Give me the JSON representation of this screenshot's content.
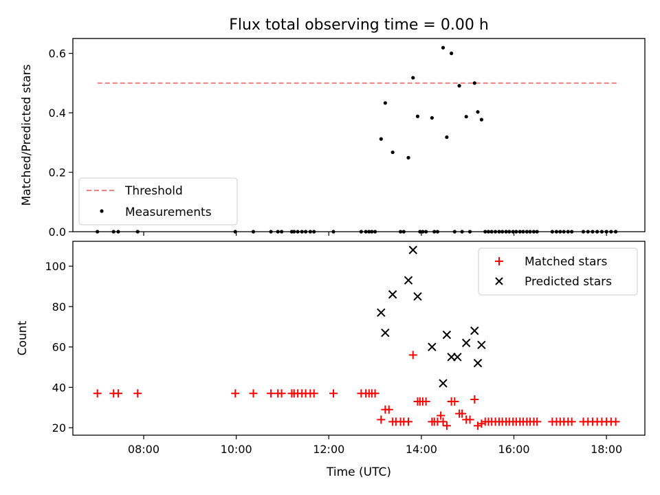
{
  "chart_data": [
    {
      "type": "line",
      "title": "Flux total observing time = 0.00 h",
      "xlabel": "",
      "ylabel": "Matched/Predicted stars",
      "xlim": [
        6.47,
        18.83
      ],
      "ylim": [
        0.0,
        0.65
      ],
      "yticks": [
        0.0,
        0.2,
        0.4,
        0.6
      ],
      "ytick_labels": [
        "0.0",
        "0.2",
        "0.4",
        "0.6"
      ],
      "xticks": [
        8,
        10,
        12,
        14,
        16,
        18
      ],
      "grid": false,
      "legend_position": "lower-left",
      "threshold": {
        "name": "Threshold",
        "x": [
          7.0,
          18.25
        ],
        "y": 0.5,
        "color": "#f08080"
      },
      "series": [
        {
          "name": "Measurements",
          "kind": "scatter",
          "color": "#000000",
          "x": [
            7.0,
            7.35,
            7.45,
            7.87,
            9.98,
            10.37,
            10.75,
            10.9,
            10.98,
            11.2,
            11.25,
            11.33,
            11.42,
            11.5,
            11.6,
            11.68,
            12.1,
            12.7,
            12.8,
            12.87,
            12.93,
            13.0,
            13.13,
            13.22,
            13.38,
            13.55,
            13.62,
            13.72,
            13.82,
            13.92,
            13.97,
            14.03,
            14.1,
            14.23,
            14.28,
            14.35,
            14.47,
            14.55,
            14.65,
            14.72,
            14.82,
            14.88,
            14.97,
            15.05,
            15.15,
            15.22,
            15.3,
            15.38,
            15.45,
            15.52,
            15.6,
            15.68,
            15.75,
            15.83,
            15.9,
            15.98,
            16.05,
            16.13,
            16.2,
            16.28,
            16.35,
            16.43,
            16.5,
            16.83,
            16.92,
            17.0,
            17.08,
            17.17,
            17.25,
            17.5,
            17.6,
            17.7,
            17.8,
            17.9,
            18.0,
            18.1,
            18.2
          ],
          "y": [
            0.0,
            0.0,
            0.0,
            0.0,
            0.0,
            0.0,
            0.0,
            0.0,
            0.0,
            0.0,
            0.0,
            0.0,
            0.0,
            0.0,
            0.0,
            0.0,
            0.0,
            0.0,
            0.0,
            0.0,
            0.0,
            0.0,
            0.312,
            0.433,
            0.267,
            0.0,
            0.0,
            0.249,
            0.518,
            0.388,
            0.0,
            0.0,
            0.0,
            0.383,
            0.0,
            0.0,
            0.619,
            0.318,
            0.6,
            0.0,
            0.491,
            0.0,
            0.387,
            0.0,
            0.5,
            0.403,
            0.377,
            0.0,
            0.0,
            0.0,
            0.0,
            0.0,
            0.0,
            0.0,
            0.0,
            0.0,
            0.0,
            0.0,
            0.0,
            0.0,
            0.0,
            0.0,
            0.0,
            0.0,
            0.0,
            0.0,
            0.0,
            0.0,
            0.0,
            0.0,
            0.0,
            0.0,
            0.0,
            0.0,
            0.0,
            0.0,
            0.0
          ]
        }
      ]
    },
    {
      "type": "scatter",
      "title": "",
      "xlabel": "Time (UTC)",
      "ylabel": "Count",
      "xlim": [
        6.47,
        18.83
      ],
      "ylim": [
        16.3,
        112.3
      ],
      "yticks": [
        20,
        40,
        60,
        80,
        100
      ],
      "ytick_labels": [
        "20",
        "40",
        "60",
        "80",
        "100"
      ],
      "xticks": [
        8,
        10,
        12,
        14,
        16,
        18
      ],
      "xtick_labels": [
        "08:00",
        "10:00",
        "12:00",
        "14:00",
        "16:00",
        "18:00"
      ],
      "grid": false,
      "legend_position": "upper-right",
      "series": [
        {
          "name": "Matched stars",
          "marker": "plus",
          "color": "#ff0000",
          "x": [
            7.0,
            7.35,
            7.45,
            7.87,
            9.98,
            10.37,
            10.75,
            10.9,
            10.98,
            11.2,
            11.25,
            11.33,
            11.42,
            11.5,
            11.6,
            11.68,
            12.1,
            12.7,
            12.8,
            12.87,
            12.93,
            13.0,
            13.13,
            13.22,
            13.3,
            13.38,
            13.45,
            13.55,
            13.62,
            13.72,
            13.82,
            13.92,
            13.97,
            14.03,
            14.1,
            14.23,
            14.28,
            14.35,
            14.42,
            14.47,
            14.55,
            14.65,
            14.72,
            14.82,
            14.88,
            14.97,
            15.05,
            15.15,
            15.22,
            15.3,
            15.38,
            15.45,
            15.52,
            15.6,
            15.68,
            15.75,
            15.83,
            15.9,
            15.98,
            16.05,
            16.13,
            16.2,
            16.28,
            16.35,
            16.43,
            16.5,
            16.83,
            16.92,
            17.0,
            17.08,
            17.17,
            17.25,
            17.5,
            17.6,
            17.7,
            17.8,
            17.9,
            18.0,
            18.1,
            18.2
          ],
          "y": [
            37,
            37,
            37,
            37,
            37,
            37,
            37,
            37,
            37,
            37,
            37,
            37,
            37,
            37,
            37,
            37,
            37,
            37,
            37,
            37,
            37,
            37,
            24,
            29,
            29,
            23,
            23,
            23,
            23,
            23,
            56,
            33,
            33,
            33,
            33,
            23,
            23,
            23,
            26,
            23,
            21,
            33,
            33,
            27,
            27,
            24,
            24,
            34,
            21,
            22,
            23,
            23,
            23,
            23,
            23,
            23,
            23,
            23,
            23,
            23,
            23,
            23,
            23,
            23,
            23,
            23,
            23,
            23,
            23,
            23,
            23,
            23,
            23,
            23,
            23,
            23,
            23,
            23,
            23,
            23
          ]
        },
        {
          "name": "Predicted stars",
          "marker": "x",
          "color": "#000000",
          "x": [
            13.13,
            13.22,
            13.38,
            13.72,
            13.82,
            13.92,
            14.23,
            14.47,
            14.55,
            14.65,
            14.78,
            14.97,
            15.15,
            15.22,
            15.3
          ],
          "y": [
            77,
            67,
            86,
            93,
            108,
            85,
            60,
            42,
            66,
            55,
            55,
            62,
            68,
            52,
            61
          ]
        }
      ]
    }
  ]
}
